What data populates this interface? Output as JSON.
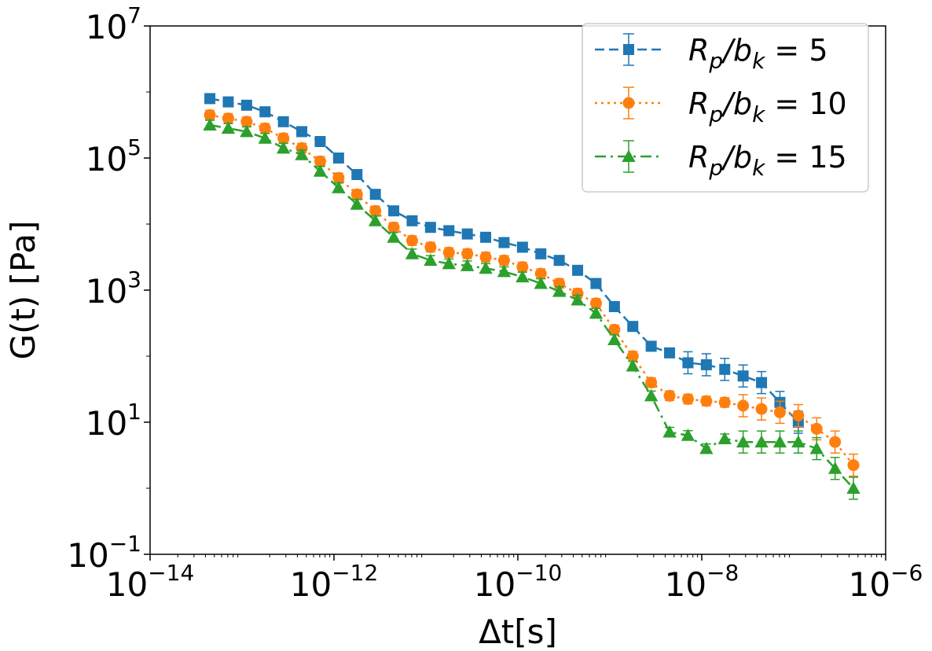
{
  "chart_data": {
    "type": "line",
    "xscale": "log",
    "yscale": "log",
    "xlabel": "Δt[s]",
    "ylabel": "G(t) [Pa]",
    "xlim": [
      1e-14,
      1e-06
    ],
    "ylim": [
      0.1,
      10000000
    ],
    "xticks": [
      {
        "base": "10",
        "exp": "−14",
        "value": 1e-14
      },
      {
        "base": "10",
        "exp": "−12",
        "value": 1e-12
      },
      {
        "base": "10",
        "exp": "−10",
        "value": 1e-10
      },
      {
        "base": "10",
        "exp": "−8",
        "value": 1e-08
      },
      {
        "base": "10",
        "exp": "−6",
        "value": 1e-06
      }
    ],
    "yticks": [
      {
        "base": "10",
        "exp": "−1",
        "value": 0.1
      },
      {
        "base": "10",
        "exp": "1",
        "value": 10
      },
      {
        "base": "10",
        "exp": "3",
        "value": 1000
      },
      {
        "base": "10",
        "exp": "5",
        "value": 100000
      },
      {
        "base": "10",
        "exp": "7",
        "value": 10000000
      }
    ],
    "legend": {
      "position": "top-right",
      "entries": [
        {
          "lhs": "R",
          "sub1": "p",
          "mid": "/b",
          "sub2": "k",
          "rhs": " = 5"
        },
        {
          "lhs": "R",
          "sub1": "p",
          "mid": "/b",
          "sub2": "k",
          "rhs": " = 10"
        },
        {
          "lhs": "R",
          "sub1": "p",
          "mid": "/b",
          "sub2": "k",
          "rhs": " = 15"
        }
      ]
    },
    "series": [
      {
        "name": "Rp/bk = 5",
        "color": "#1f77b4",
        "marker": "square",
        "linestyle": "dashed",
        "log10_x": [
          -13.35,
          -13.15,
          -12.95,
          -12.75,
          -12.55,
          -12.35,
          -12.15,
          -11.95,
          -11.75,
          -11.55,
          -11.35,
          -11.15,
          -10.95,
          -10.75,
          -10.55,
          -10.35,
          -10.15,
          -9.95,
          -9.75,
          -9.55,
          -9.35,
          -9.15,
          -8.95,
          -8.75,
          -8.55,
          -8.35,
          -8.15,
          -7.95,
          -7.75,
          -7.55,
          -7.35,
          -7.15,
          -6.95
        ],
        "log10_y": [
          5.9,
          5.85,
          5.8,
          5.7,
          5.55,
          5.4,
          5.25,
          5.0,
          4.75,
          4.45,
          4.2,
          4.05,
          3.95,
          3.9,
          3.85,
          3.8,
          3.72,
          3.65,
          3.55,
          3.45,
          3.3,
          3.1,
          2.75,
          2.45,
          2.15,
          2.05,
          1.9,
          1.87,
          1.8,
          1.7,
          1.6,
          1.3,
          1.0
        ]
      },
      {
        "name": "Rp/bk = 10",
        "color": "#ff7f0e",
        "marker": "circle",
        "linestyle": "dotted",
        "log10_x": [
          -13.35,
          -13.15,
          -12.95,
          -12.75,
          -12.55,
          -12.35,
          -12.15,
          -11.95,
          -11.75,
          -11.55,
          -11.35,
          -11.15,
          -10.95,
          -10.75,
          -10.55,
          -10.35,
          -10.15,
          -9.95,
          -9.75,
          -9.55,
          -9.35,
          -9.15,
          -8.95,
          -8.75,
          -8.55,
          -8.35,
          -8.15,
          -7.95,
          -7.75,
          -7.55,
          -7.35,
          -7.15,
          -6.95,
          -6.75,
          -6.55,
          -6.35
        ],
        "log10_y": [
          5.65,
          5.6,
          5.55,
          5.45,
          5.3,
          5.15,
          4.95,
          4.7,
          4.45,
          4.2,
          3.95,
          3.75,
          3.65,
          3.57,
          3.55,
          3.5,
          3.45,
          3.35,
          3.25,
          3.1,
          2.95,
          2.8,
          2.4,
          2.0,
          1.6,
          1.4,
          1.35,
          1.32,
          1.3,
          1.25,
          1.2,
          1.15,
          1.1,
          0.9,
          0.7,
          0.35
        ]
      },
      {
        "name": "Rp/bk = 15",
        "color": "#2ca02c",
        "marker": "triangle",
        "linestyle": "dashdot",
        "log10_x": [
          -13.35,
          -13.15,
          -12.95,
          -12.75,
          -12.55,
          -12.35,
          -12.15,
          -11.95,
          -11.75,
          -11.55,
          -11.35,
          -11.15,
          -10.95,
          -10.75,
          -10.55,
          -10.35,
          -10.15,
          -9.95,
          -9.75,
          -9.55,
          -9.35,
          -9.15,
          -8.95,
          -8.75,
          -8.55,
          -8.35,
          -8.15,
          -7.95,
          -7.75,
          -7.55,
          -7.35,
          -7.15,
          -6.95,
          -6.75,
          -6.55,
          -6.35
        ],
        "log10_y": [
          5.5,
          5.45,
          5.4,
          5.3,
          5.15,
          5.05,
          4.8,
          4.55,
          4.3,
          4.05,
          3.8,
          3.55,
          3.45,
          3.4,
          3.37,
          3.33,
          3.28,
          3.2,
          3.1,
          2.98,
          2.85,
          2.65,
          2.25,
          1.85,
          1.4,
          0.85,
          0.8,
          0.6,
          0.75,
          0.7,
          0.7,
          0.7,
          0.7,
          0.6,
          0.3,
          0.0
        ]
      }
    ]
  }
}
